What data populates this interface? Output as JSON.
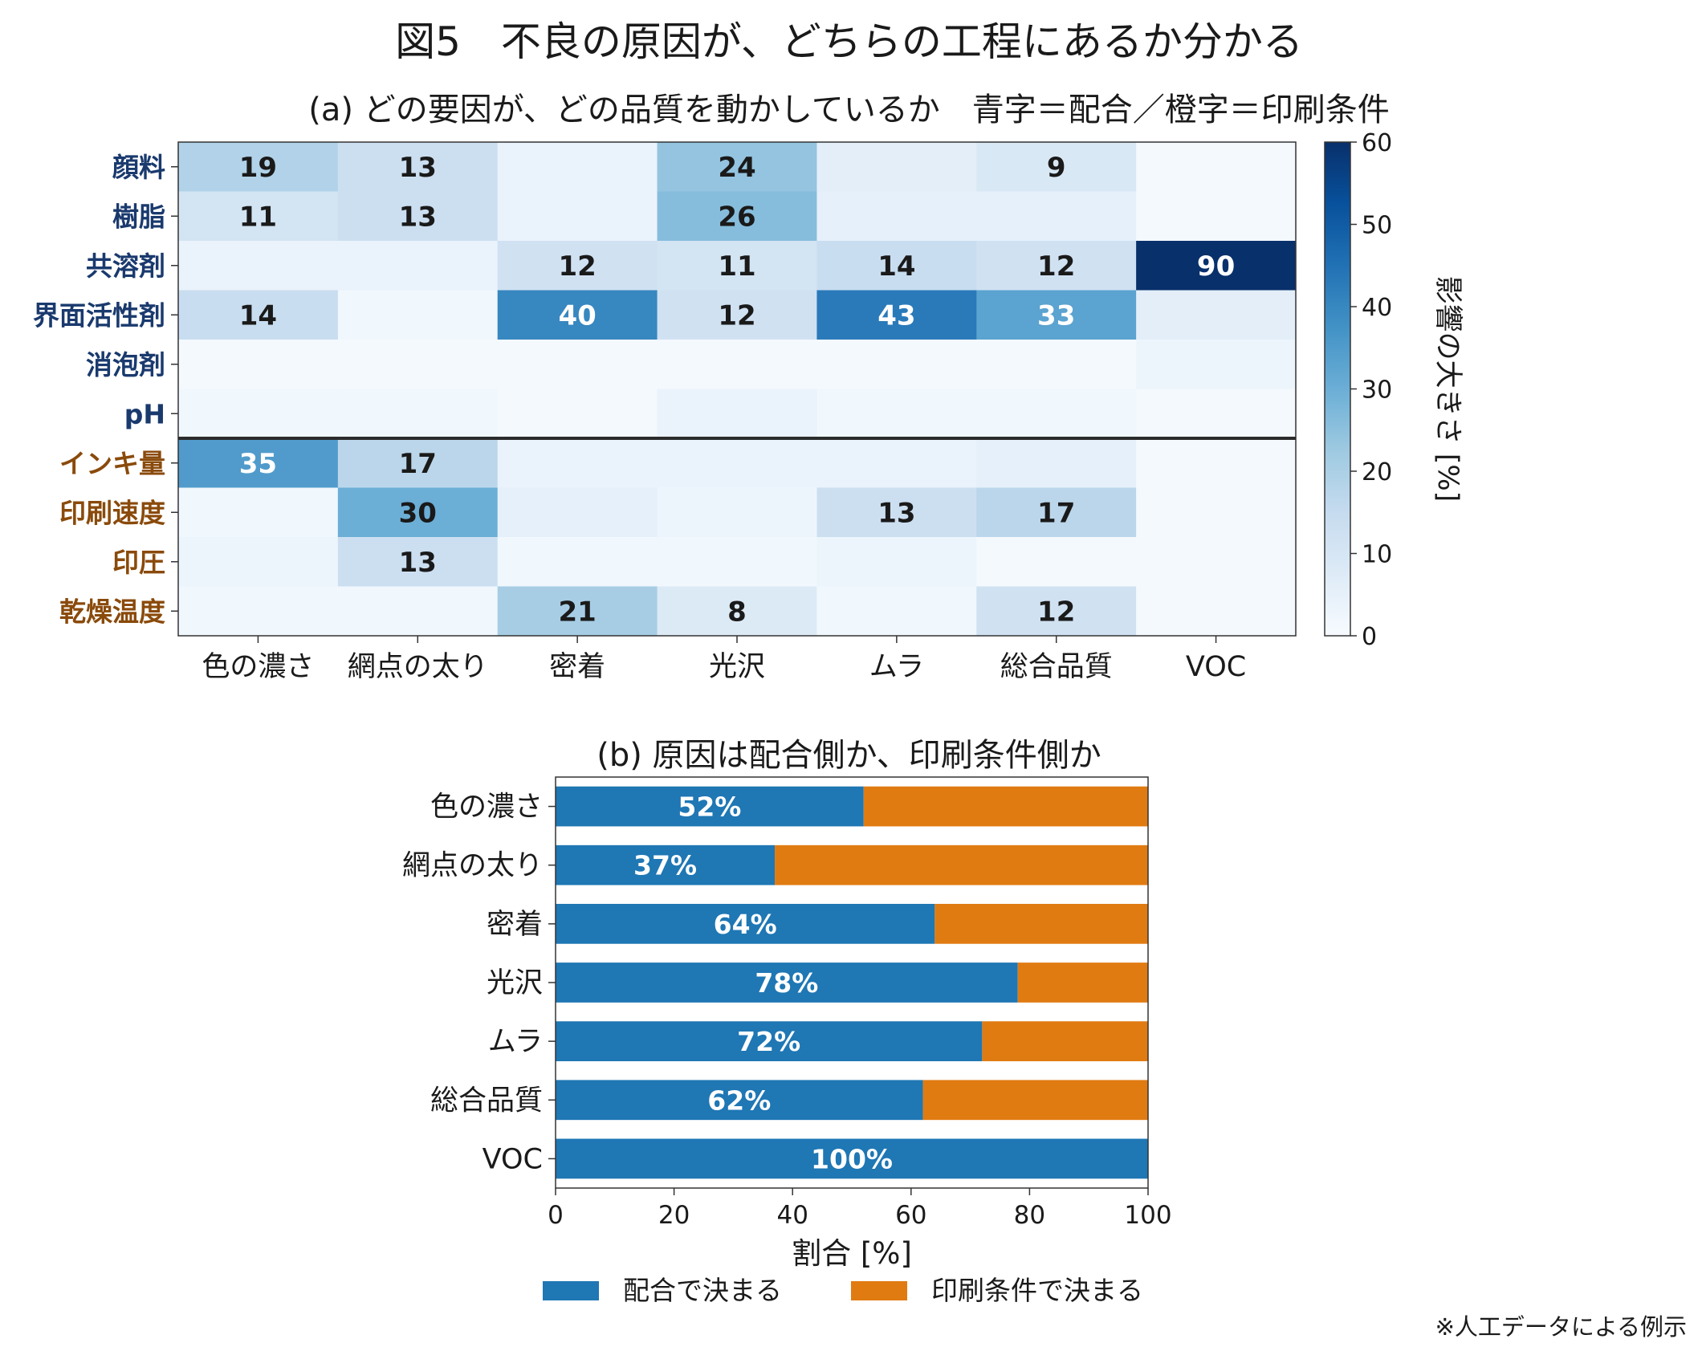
{
  "figure": {
    "title": "図5　不良の原因が、どちらの工程にあるか分かる",
    "note": "※人工データによる例示"
  },
  "colors": {
    "formulation": "#1f77b4",
    "printing": "#e07b12",
    "row_label_formulation": "#1a3a6e",
    "row_label_printing": "#8a4a0b",
    "heat_low": "#f7fbff",
    "heat_high": "#08306b"
  },
  "chart_data": [
    {
      "type": "heatmap",
      "title": "(a) どの要因が、どの品質を動かしているか　青字＝配合／橙字＝印刷条件",
      "rows": [
        "顔料",
        "樹脂",
        "共溶剤",
        "界面活性剤",
        "消泡剤",
        "pH",
        "インキ量",
        "印刷速度",
        "印圧",
        "乾燥温度"
      ],
      "row_groups": [
        "配合",
        "配合",
        "配合",
        "配合",
        "配合",
        "配合",
        "印刷条件",
        "印刷条件",
        "印刷条件",
        "印刷条件"
      ],
      "columns": [
        "色の濃さ",
        "網点の太り",
        "密着",
        "光沢",
        "ムラ",
        "総合品質",
        "VOC"
      ],
      "values": [
        [
          19,
          13,
          4,
          24,
          6,
          9,
          1
        ],
        [
          11,
          13,
          4,
          26,
          5,
          5,
          1
        ],
        [
          4,
          4,
          12,
          11,
          14,
          12,
          90
        ],
        [
          14,
          2,
          40,
          12,
          43,
          33,
          6
        ],
        [
          1,
          1,
          1,
          1,
          1,
          1,
          3
        ],
        [
          2,
          2,
          1,
          4,
          2,
          2,
          1
        ],
        [
          35,
          17,
          4,
          4,
          4,
          5,
          1
        ],
        [
          2,
          30,
          5,
          3,
          13,
          17,
          1
        ],
        [
          3,
          13,
          2,
          2,
          3,
          1,
          1
        ],
        [
          2,
          2,
          21,
          8,
          2,
          12,
          1
        ]
      ],
      "labels": [
        [
          "19",
          "13",
          "",
          "24",
          "",
          "9",
          ""
        ],
        [
          "11",
          "13",
          "",
          "26",
          "",
          "",
          ""
        ],
        [
          "",
          "",
          "12",
          "11",
          "14",
          "12",
          "90"
        ],
        [
          "14",
          "",
          "40",
          "12",
          "43",
          "33",
          ""
        ],
        [
          "",
          "",
          "",
          "",
          "",
          "",
          ""
        ],
        [
          "",
          "",
          "",
          "",
          "",
          "",
          ""
        ],
        [
          "35",
          "17",
          "",
          "",
          "",
          "",
          ""
        ],
        [
          "",
          "30",
          "",
          "",
          "13",
          "17",
          ""
        ],
        [
          "",
          "13",
          "",
          "",
          "",
          "",
          ""
        ],
        [
          "",
          "",
          "21",
          "8",
          "",
          "12",
          ""
        ]
      ],
      "group_divider_after_row": 5,
      "colorbar": {
        "label": "影響の大きさ [%]",
        "range": [
          0,
          60
        ],
        "ticks": [
          "0",
          "10",
          "20",
          "30",
          "40",
          "50",
          "60"
        ],
        "colormap": "Blues"
      }
    },
    {
      "type": "bar",
      "orientation": "horizontal",
      "stacked": true,
      "title": "(b) 原因は配合側か、印刷条件側か",
      "categories": [
        "色の濃さ",
        "網点の太り",
        "密着",
        "光沢",
        "ムラ",
        "総合品質",
        "VOC"
      ],
      "series": [
        {
          "name": "配合で決まる",
          "values": [
            52,
            37,
            64,
            78,
            72,
            62,
            100
          ],
          "labels": [
            "52%",
            "37%",
            "64%",
            "78%",
            "72%",
            "62%",
            "100%"
          ]
        },
        {
          "name": "印刷条件で決まる",
          "values": [
            48,
            63,
            36,
            22,
            28,
            38,
            0
          ]
        }
      ],
      "xlabel": "割合 [%]",
      "xlim": [
        0,
        100
      ],
      "xticks": [
        "0",
        "20",
        "40",
        "60",
        "80",
        "100"
      ],
      "legend_position": "bottom-center"
    }
  ]
}
